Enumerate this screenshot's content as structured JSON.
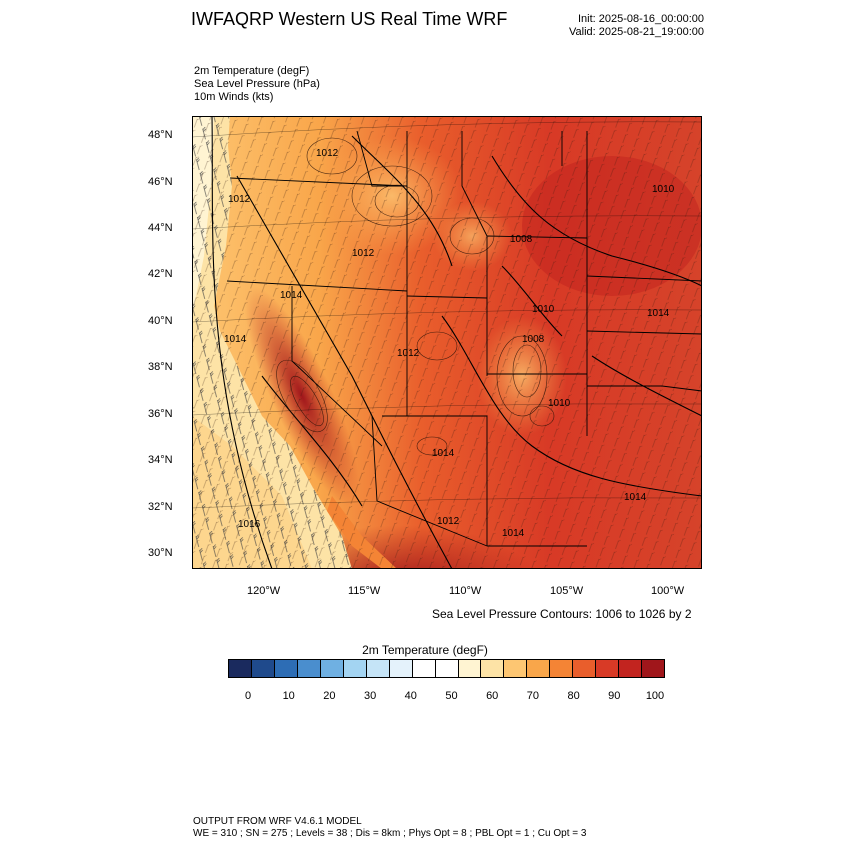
{
  "title": "IWFAQRP Western US Real Time WRF",
  "run": {
    "init": "Init: 2025-08-16_00:00:00",
    "valid": "Valid: 2025-08-21_19:00:00"
  },
  "fields": [
    "2m Temperature   (degF)",
    "Sea Level Pressure   (hPa)",
    "10m Winds   (kts)"
  ],
  "map": {
    "lat_labels": [
      "48°N",
      "46°N",
      "44°N",
      "42°N",
      "40°N",
      "38°N",
      "36°N",
      "34°N",
      "32°N",
      "30°N"
    ],
    "lon_labels": [
      "120°W",
      "115°W",
      "110°W",
      "105°W",
      "100°W"
    ],
    "pressure_labels": [
      "1012",
      "1012",
      "1008",
      "1010",
      "1012",
      "1014",
      "1014",
      "1010",
      "1014",
      "1012",
      "1008",
      "1010",
      "1014",
      "1014",
      "1012",
      "1014",
      "1016"
    ]
  },
  "contour_note": "Sea Level Pressure Contours: 1006 to 1026 by 2",
  "colorbar": {
    "title": "2m Temperature  (degF)",
    "labels": [
      "0",
      "10",
      "20",
      "30",
      "40",
      "50",
      "60",
      "70",
      "80",
      "90",
      "100"
    ],
    "colors": [
      "#1a2a5e",
      "#1f4a8c",
      "#2d6db5",
      "#4a8ece",
      "#6fb0e2",
      "#a3d4f2",
      "#c5e4f7",
      "#e4f2fb",
      "#ffffff",
      "#ffffff",
      "#fff4d2",
      "#fde3a6",
      "#fdc672",
      "#f9a64a",
      "#f48435",
      "#e95e2c",
      "#d83a26",
      "#c2241f",
      "#a0161b"
    ]
  },
  "footer": [
    "OUTPUT FROM WRF V4.6.1 MODEL",
    "WE = 310 ; SN = 275 ; Levels = 38 ; Dis = 8km ; Phys Opt = 8 ; PBL Opt = 1 ; Cu Opt = 3"
  ]
}
